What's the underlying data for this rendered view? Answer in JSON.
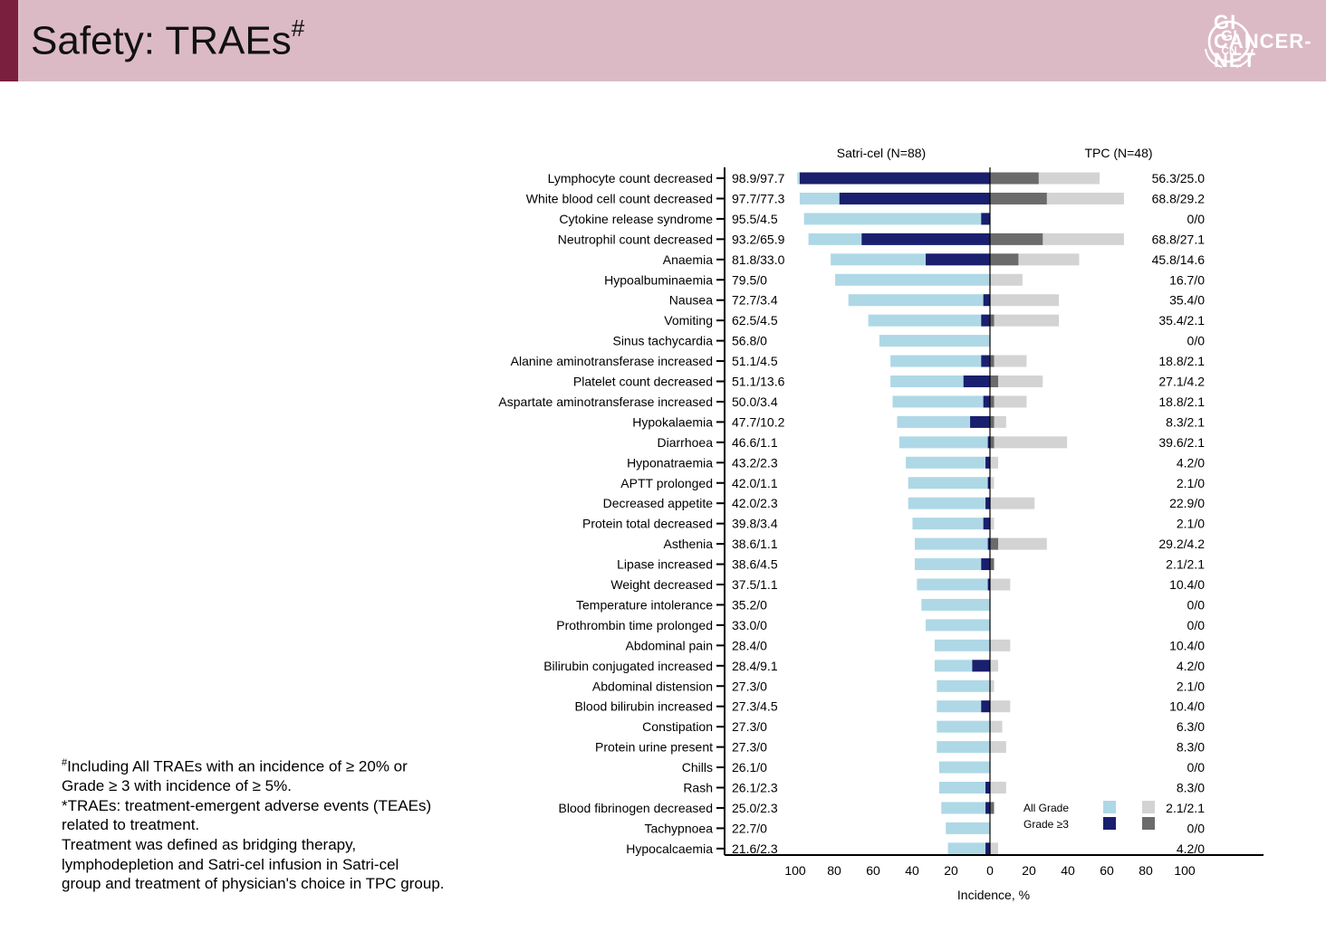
{
  "header": {
    "title": "Safety: TRAEs",
    "title_sup": "#",
    "logo_line1": "GI",
    "logo_line2": "CANCER-",
    "logo_line3": "NET",
    "logo_mark_top": "GI",
    "logo_mark_bottom": "CN"
  },
  "footnotes": [
    {
      "sup": "#",
      "text": "Including All TRAEs with an incidence of ≥ 20% or"
    },
    {
      "sup": "",
      "text": "Grade ≥ 3 with incidence of ≥ 5%."
    },
    {
      "sup": "",
      "text": "*TRAEs: treatment-emergent adverse events (TEAEs)"
    },
    {
      "sup": "",
      "text": "related to treatment."
    },
    {
      "sup": "",
      "text": "Treatment was defined as bridging therapy,"
    },
    {
      "sup": "",
      "text": "lymphodepletion and Satri-cel infusion in Satri-cel"
    },
    {
      "sup": "",
      "text": "group and treatment of physician's choice in TPC group."
    }
  ],
  "colors": {
    "satri_all": "#aed8e6",
    "satri_g3": "#1a1f6e",
    "tpc_all": "#d3d3d3",
    "tpc_g3": "#6b6b6b",
    "header_bg": "#dbbac6",
    "accent": "#7a1f3d"
  },
  "chart_data": {
    "type": "bar",
    "orientation": "horizontal-butterfly",
    "left_group": "Satri-cel (N=88)",
    "right_group": "TPC (N=48)",
    "xlabel": "Incidence, %",
    "xlim": [
      0,
      100
    ],
    "x_ticks": [
      "100",
      "80",
      "60",
      "40",
      "20",
      "0",
      "20",
      "40",
      "60",
      "80",
      "100"
    ],
    "legend": {
      "all_grade": "All Grade",
      "grade3": "Grade ≥3",
      "placement": "bottom-right"
    },
    "categories": [
      "Lymphocyte count decreased",
      "White blood cell count decreased",
      "Cytokine release syndrome",
      "Neutrophil count decreased",
      "Anaemia",
      "Hypoalbuminaemia",
      "Nausea",
      "Vomiting",
      "Sinus tachycardia",
      "Alanine aminotransferase increased",
      "Platelet count decreased",
      "Aspartate aminotransferase increased",
      "Hypokalaemia",
      "Diarrhoea",
      "Hyponatraemia",
      "APTT prolonged",
      "Decreased appetite",
      "Protein total decreased",
      "Asthenia",
      "Lipase increased",
      "Weight decreased",
      "Temperature intolerance",
      "Prothrombin time prolonged",
      "Abdominal pain",
      "Bilirubin conjugated increased",
      "Abdominal distension",
      "Blood bilirubin increased",
      "Constipation",
      "Protein urine present",
      "Chills",
      "Rash",
      "Blood fibrinogen decreased",
      "Tachypnoea",
      "Hypocalcaemia"
    ],
    "series": [
      {
        "name": "Satri-cel All Grade",
        "values": [
          98.9,
          97.7,
          95.5,
          93.2,
          81.8,
          79.5,
          72.7,
          62.5,
          56.8,
          51.1,
          51.1,
          50.0,
          47.7,
          46.6,
          43.2,
          42.0,
          42.0,
          39.8,
          38.6,
          38.6,
          37.5,
          35.2,
          33.0,
          28.4,
          28.4,
          27.3,
          27.3,
          27.3,
          27.3,
          26.1,
          26.1,
          25.0,
          22.7,
          21.6
        ]
      },
      {
        "name": "Satri-cel Grade ≥3",
        "values": [
          97.7,
          77.3,
          4.5,
          65.9,
          33.0,
          0,
          3.4,
          4.5,
          0,
          4.5,
          13.6,
          3.4,
          10.2,
          1.1,
          2.3,
          1.1,
          2.3,
          3.4,
          1.1,
          4.5,
          1.1,
          0,
          0,
          0,
          9.1,
          0,
          4.5,
          0,
          0,
          0,
          2.3,
          2.3,
          0,
          2.3
        ]
      },
      {
        "name": "TPC All Grade",
        "values": [
          56.3,
          68.8,
          0,
          68.8,
          45.8,
          16.7,
          35.4,
          35.4,
          0,
          18.8,
          27.1,
          18.8,
          8.3,
          39.6,
          4.2,
          2.1,
          22.9,
          2.1,
          29.2,
          2.1,
          10.4,
          0,
          0,
          10.4,
          4.2,
          2.1,
          10.4,
          6.3,
          8.3,
          0,
          8.3,
          2.1,
          0,
          4.2
        ]
      },
      {
        "name": "TPC Grade ≥3",
        "values": [
          25.0,
          29.2,
          0,
          27.1,
          14.6,
          0,
          0,
          2.1,
          0,
          2.1,
          4.2,
          2.1,
          2.1,
          2.1,
          0,
          0,
          0,
          0,
          4.2,
          2.1,
          0,
          0,
          0,
          0,
          0,
          0,
          0,
          0,
          0,
          0,
          0,
          2.1,
          0,
          0
        ]
      }
    ],
    "left_labels": [
      "98.9/97.7",
      "97.7/77.3",
      "95.5/4.5",
      "93.2/65.9",
      "81.8/33.0",
      "79.5/0",
      "72.7/3.4",
      "62.5/4.5",
      "56.8/0",
      "51.1/4.5",
      "51.1/13.6",
      "50.0/3.4",
      "47.7/10.2",
      "46.6/1.1",
      "43.2/2.3",
      "42.0/1.1",
      "42.0/2.3",
      "39.8/3.4",
      "38.6/1.1",
      "38.6/4.5",
      "37.5/1.1",
      "35.2/0",
      "33.0/0",
      "28.4/0",
      "28.4/9.1",
      "27.3/0",
      "27.3/4.5",
      "27.3/0",
      "27.3/0",
      "26.1/0",
      "26.1/2.3",
      "25.0/2.3",
      "22.7/0",
      "21.6/2.3"
    ],
    "right_labels": [
      "56.3/25.0",
      "68.8/29.2",
      "0/0",
      "68.8/27.1",
      "45.8/14.6",
      "16.7/0",
      "35.4/0",
      "35.4/2.1",
      "0/0",
      "18.8/2.1",
      "27.1/4.2",
      "18.8/2.1",
      "8.3/2.1",
      "39.6/2.1",
      "4.2/0",
      "2.1/0",
      "22.9/0",
      "2.1/0",
      "29.2/4.2",
      "2.1/2.1",
      "10.4/0",
      "0/0",
      "0/0",
      "10.4/0",
      "4.2/0",
      "2.1/0",
      "10.4/0",
      "6.3/0",
      "8.3/0",
      "0/0",
      "8.3/0",
      "2.1/2.1",
      "0/0",
      "4.2/0"
    ]
  }
}
